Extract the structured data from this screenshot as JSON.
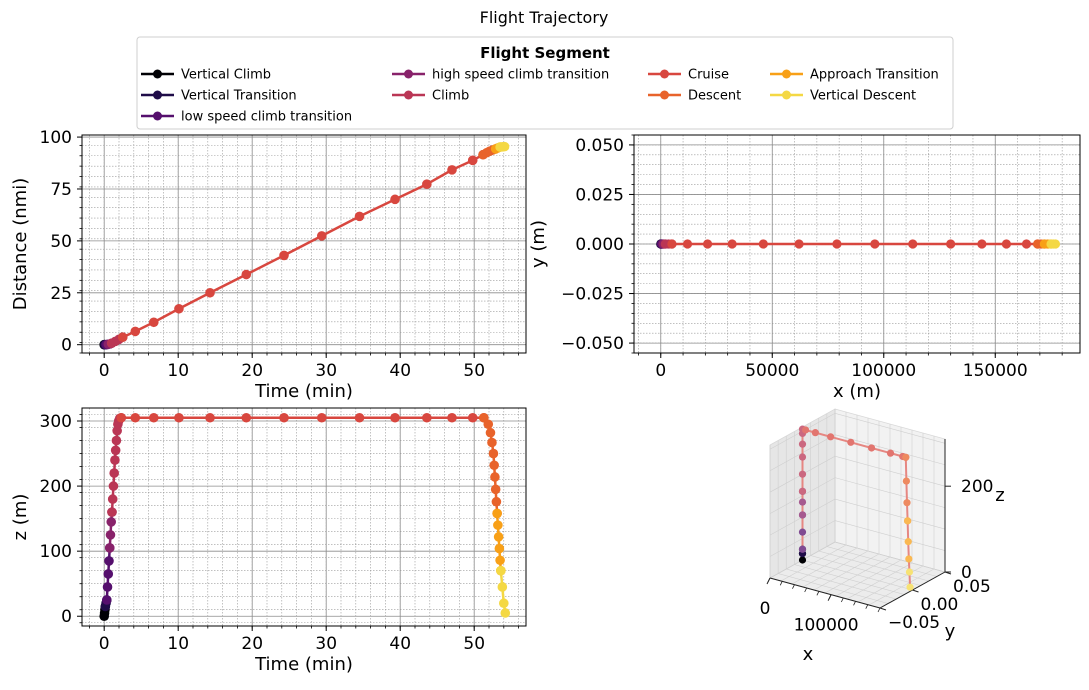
{
  "figure": {
    "title": "Flight Trajectory",
    "legend_title": "Flight Segment",
    "legend_location": "top-center"
  },
  "segments": [
    {
      "name": "Vertical Climb",
      "color": "#000004"
    },
    {
      "name": "Vertical Transition",
      "color": "#1f0c48"
    },
    {
      "name": "low speed climb transition",
      "color": "#550f6d"
    },
    {
      "name": "high speed climb transition",
      "color": "#88226a"
    },
    {
      "name": "Climb",
      "color": "#ba3655"
    },
    {
      "name": "Cruise",
      "color": "#d8473f"
    },
    {
      "name": "Descent",
      "color": "#e8632b"
    },
    {
      "name": "Approach Transition",
      "color": "#f8a017"
    },
    {
      "name": "Vertical Descent",
      "color": "#f4d844"
    }
  ],
  "chart_data": [
    {
      "type": "line",
      "xlabel": "Time (min)",
      "ylabel": "Distance (nmi)",
      "xlim": [
        -3,
        57
      ],
      "ylim": [
        -4,
        101
      ],
      "xticks": [
        "0",
        "10",
        "20",
        "30",
        "40",
        "50"
      ],
      "yticks": [
        "0",
        "25",
        "50",
        "75",
        "100"
      ],
      "grid": true,
      "series": [
        {
          "name": "Vertical Climb",
          "x": [
            0,
            0.03,
            0.06
          ],
          "y": [
            0,
            0,
            0
          ]
        },
        {
          "name": "Vertical Transition",
          "x": [
            0.06,
            0.15,
            0.25
          ],
          "y": [
            0,
            0,
            0.02
          ]
        },
        {
          "name": "low speed climb transition",
          "x": [
            0.25,
            0.4,
            0.55
          ],
          "y": [
            0.02,
            0.1,
            0.2
          ]
        },
        {
          "name": "high speed climb transition",
          "x": [
            0.55,
            0.8,
            1.0
          ],
          "y": [
            0.2,
            0.4,
            0.7
          ]
        },
        {
          "name": "Climb",
          "x": [
            1.0,
            1.5,
            2.0,
            2.5
          ],
          "y": [
            0.7,
            1.6,
            2.6,
            3.6
          ]
        },
        {
          "name": "Cruise",
          "x": [
            2.5,
            4.2,
            6.7,
            10.1,
            14.3,
            19.2,
            24.3,
            29.4,
            34.5,
            39.3,
            43.6,
            47.0,
            49.8,
            51.2
          ],
          "y": [
            3.6,
            6.4,
            10.8,
            17.3,
            25.0,
            33.8,
            43.0,
            52.4,
            61.8,
            70.0,
            77.3,
            84.2,
            88.8,
            91.5
          ]
        },
        {
          "name": "Descent",
          "x": [
            51.2,
            51.7,
            52.1,
            52.5,
            52.9
          ],
          "y": [
            91.5,
            92.5,
            93.2,
            93.8,
            94.3
          ]
        },
        {
          "name": "Approach Transition",
          "x": [
            52.9,
            53.2,
            53.5
          ],
          "y": [
            94.3,
            94.8,
            95.2
          ]
        },
        {
          "name": "Vertical Descent",
          "x": [
            53.5,
            53.8,
            54.1
          ],
          "y": [
            95.2,
            95.3,
            95.4
          ]
        }
      ]
    },
    {
      "type": "line",
      "xlabel": "x (m)",
      "ylabel": "y (m)",
      "xlim": [
        -12000,
        188000
      ],
      "ylim": [
        -0.055,
        0.055
      ],
      "xticks": [
        "0",
        "50000",
        "100000",
        "150000"
      ],
      "yticks": [
        "0.050",
        "0.025",
        "0.000",
        "−0.025",
        "−0.050"
      ],
      "grid": true,
      "series": [
        {
          "name": "Vertical Climb",
          "x": [
            0,
            100
          ],
          "y": [
            0,
            0
          ]
        },
        {
          "name": "Vertical Transition",
          "x": [
            100,
            300
          ],
          "y": [
            0,
            0
          ]
        },
        {
          "name": "low speed climb transition",
          "x": [
            300,
            700,
            1000
          ],
          "y": [
            0,
            0,
            0
          ]
        },
        {
          "name": "high speed climb transition",
          "x": [
            1000,
            1500,
            2000
          ],
          "y": [
            0,
            0,
            0
          ]
        },
        {
          "name": "Climb",
          "x": [
            2000,
            3500,
            5000
          ],
          "y": [
            0,
            0,
            0
          ]
        },
        {
          "name": "Cruise",
          "x": [
            5000,
            12000,
            21000,
            32000,
            46000,
            62000,
            79000,
            96000,
            113000,
            130000,
            144000,
            155000,
            164000,
            169000
          ],
          "y": [
            0,
            0,
            0,
            0,
            0,
            0,
            0,
            0,
            0,
            0,
            0,
            0,
            0,
            0
          ]
        },
        {
          "name": "Descent",
          "x": [
            169000,
            170500,
            172000
          ],
          "y": [
            0,
            0,
            0
          ]
        },
        {
          "name": "Approach Transition",
          "x": [
            172000,
            173500,
            175000
          ],
          "y": [
            0,
            0,
            0
          ]
        },
        {
          "name": "Vertical Descent",
          "x": [
            175000,
            176000,
            177000
          ],
          "y": [
            0,
            0,
            0
          ]
        }
      ]
    },
    {
      "type": "line",
      "xlabel": "Time (min)",
      "ylabel": "z (m)",
      "xlim": [
        -3,
        57
      ],
      "ylim": [
        -15,
        320
      ],
      "xticks": [
        "0",
        "10",
        "20",
        "30",
        "40",
        "50"
      ],
      "yticks": [
        "0",
        "100",
        "200",
        "300"
      ],
      "grid": true,
      "series": [
        {
          "name": "Vertical Climb",
          "x": [
            0,
            0.05,
            0.1,
            0.15
          ],
          "y": [
            0,
            5,
            10,
            15
          ]
        },
        {
          "name": "Vertical Transition",
          "x": [
            0.15,
            0.25,
            0.35
          ],
          "y": [
            15,
            20,
            25
          ]
        },
        {
          "name": "low speed climb transition",
          "x": [
            0.35,
            0.45,
            0.55,
            0.65,
            0.75
          ],
          "y": [
            25,
            45,
            65,
            85,
            105
          ]
        },
        {
          "name": "high speed climb transition",
          "x": [
            0.75,
            0.85,
            0.95,
            1.05
          ],
          "y": [
            105,
            125,
            145,
            160
          ]
        },
        {
          "name": "Climb",
          "x": [
            1.05,
            1.15,
            1.25,
            1.35,
            1.45,
            1.55,
            1.65,
            1.75,
            1.85,
            1.95,
            2.1,
            2.3
          ],
          "y": [
            160,
            180,
            200,
            220,
            240,
            255,
            270,
            285,
            295,
            300,
            304,
            305
          ]
        },
        {
          "name": "Cruise",
          "x": [
            2.3,
            4.2,
            6.7,
            10.1,
            14.3,
            19.2,
            24.3,
            29.4,
            34.5,
            39.3,
            43.6,
            47.0,
            49.8,
            51.3
          ],
          "y": [
            305,
            305,
            305,
            305,
            305,
            305,
            305,
            305,
            305,
            305,
            305,
            305,
            305,
            305
          ]
        },
        {
          "name": "Descent",
          "x": [
            51.3,
            51.9,
            52.2,
            52.4,
            52.6,
            52.7,
            52.8,
            52.9,
            53.0,
            53.1
          ],
          "y": [
            305,
            295,
            282,
            267,
            250,
            232,
            214,
            195,
            176,
            158
          ]
        },
        {
          "name": "Approach Transition",
          "x": [
            53.1,
            53.2,
            53.3,
            53.4,
            53.5,
            53.6
          ],
          "y": [
            158,
            140,
            122,
            104,
            86,
            70
          ]
        },
        {
          "name": "Vertical Descent",
          "x": [
            53.6,
            53.8,
            54.0,
            54.2
          ],
          "y": [
            70,
            45,
            20,
            5
          ]
        }
      ]
    },
    {
      "type": "scatter",
      "projection": "3d",
      "xlabel": "x",
      "ylabel": "y",
      "zlabel": "z",
      "xticks": [
        "0",
        "100000"
      ],
      "yticks": [
        "−0.05",
        "0.00",
        "0.05"
      ],
      "zticks": [
        "0",
        "200"
      ],
      "grid": true,
      "series": [
        {
          "name": "Vertical Climb",
          "x": [
            0,
            0
          ],
          "z": [
            0,
            15
          ]
        },
        {
          "name": "Vertical Transition",
          "x": [
            0,
            0
          ],
          "z": [
            15,
            25
          ]
        },
        {
          "name": "low speed climb transition",
          "x": [
            0,
            0,
            0
          ],
          "z": [
            25,
            65,
            105
          ]
        },
        {
          "name": "high speed climb transition",
          "x": [
            0,
            0,
            0
          ],
          "z": [
            105,
            135,
            160
          ]
        },
        {
          "name": "Climb",
          "x": [
            0,
            0,
            0,
            0,
            0,
            0
          ],
          "z": [
            160,
            200,
            240,
            270,
            295,
            305
          ]
        },
        {
          "name": "Cruise",
          "x": [
            5000,
            21000,
            46000,
            79000,
            113000,
            144000,
            164000,
            169000
          ],
          "z": [
            305,
            305,
            305,
            305,
            305,
            305,
            305,
            305
          ]
        },
        {
          "name": "Descent",
          "x": [
            169000,
            170000,
            171000,
            172000
          ],
          "z": [
            305,
            250,
            200,
            158
          ]
        },
        {
          "name": "Approach Transition",
          "x": [
            172000,
            173000,
            174000
          ],
          "z": [
            158,
            110,
            70
          ]
        },
        {
          "name": "Vertical Descent",
          "x": [
            175000,
            176000
          ],
          "z": [
            40,
            5
          ]
        }
      ]
    }
  ]
}
